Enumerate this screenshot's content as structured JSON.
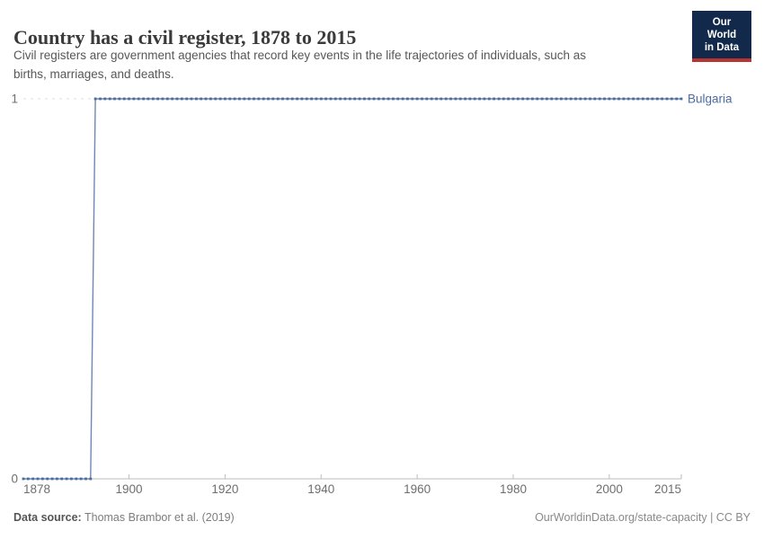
{
  "header": {
    "title": "Country has a civil register, 1878 to 2015",
    "subtitle_line1": "Civil registers are government agencies that record key events in the life trajectories of individuals, such as",
    "subtitle_line2": "births, marriages, and deaths."
  },
  "logo": {
    "line1": "Our World",
    "line2": "in Data",
    "bg_color": "#12294b",
    "accent_color": "#b8352f"
  },
  "footer": {
    "source_label": "Data source:",
    "source_value": " Thomas Brambor et al. (2019)",
    "rights": "OurWorldinData.org/state-capacity | CC BY"
  },
  "chart_data": {
    "type": "line",
    "title": "Country has a civil register, 1878 to 2015",
    "xlabel": "",
    "ylabel": "",
    "x_range": [
      1878,
      2015
    ],
    "ylim": [
      0,
      1
    ],
    "x_ticks": [
      1878,
      1900,
      1920,
      1940,
      1960,
      1980,
      2000,
      2015
    ],
    "y_ticks": [
      0,
      1
    ],
    "grid": "dashed horizontal gridline at y=1, solid axis at y=0",
    "legend_position": "label at end of line",
    "series": [
      {
        "name": "Bulgaria",
        "color": "#4c6b9e",
        "line_color": "#6e88b4",
        "marker": "square",
        "step_per_year": true,
        "segments": [
          {
            "from_year": 1878,
            "to_year": 1892,
            "value": 0
          },
          {
            "from_year": 1893,
            "to_year": 2015,
            "value": 1
          }
        ]
      }
    ],
    "colors": {
      "axis": "#bdbdbd",
      "tick_label": "#6e6e6e",
      "grid": "#dcdcdc"
    }
  }
}
